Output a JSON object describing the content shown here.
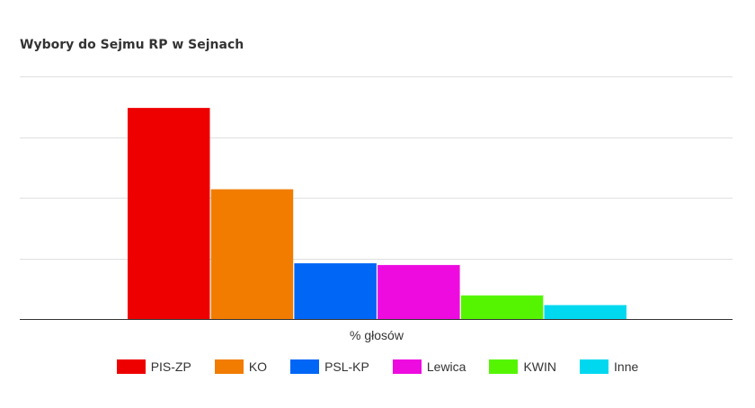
{
  "chart_data": {
    "type": "bar",
    "title": "Wybory do Sejmu RP w Sejnach",
    "xlabel": "% głosów",
    "ylabel": "",
    "categories": [
      "% głosów"
    ],
    "ylim": [
      0,
      40
    ],
    "grid": true,
    "legend_position": "bottom",
    "series": [
      {
        "name": "PIS-ZP",
        "values": [
          34.8
        ],
        "color": "#ef0000"
      },
      {
        "name": "KO",
        "values": [
          21.4
        ],
        "color": "#f17c00"
      },
      {
        "name": "PSL-KP",
        "values": [
          9.2
        ],
        "color": "#0066f5"
      },
      {
        "name": "Lewica",
        "values": [
          8.9
        ],
        "color": "#ee0be0"
      },
      {
        "name": "KWIN",
        "values": [
          3.9
        ],
        "color": "#55f502"
      },
      {
        "name": "Inne",
        "values": [
          2.3
        ],
        "color": "#00d8f0"
      }
    ]
  }
}
